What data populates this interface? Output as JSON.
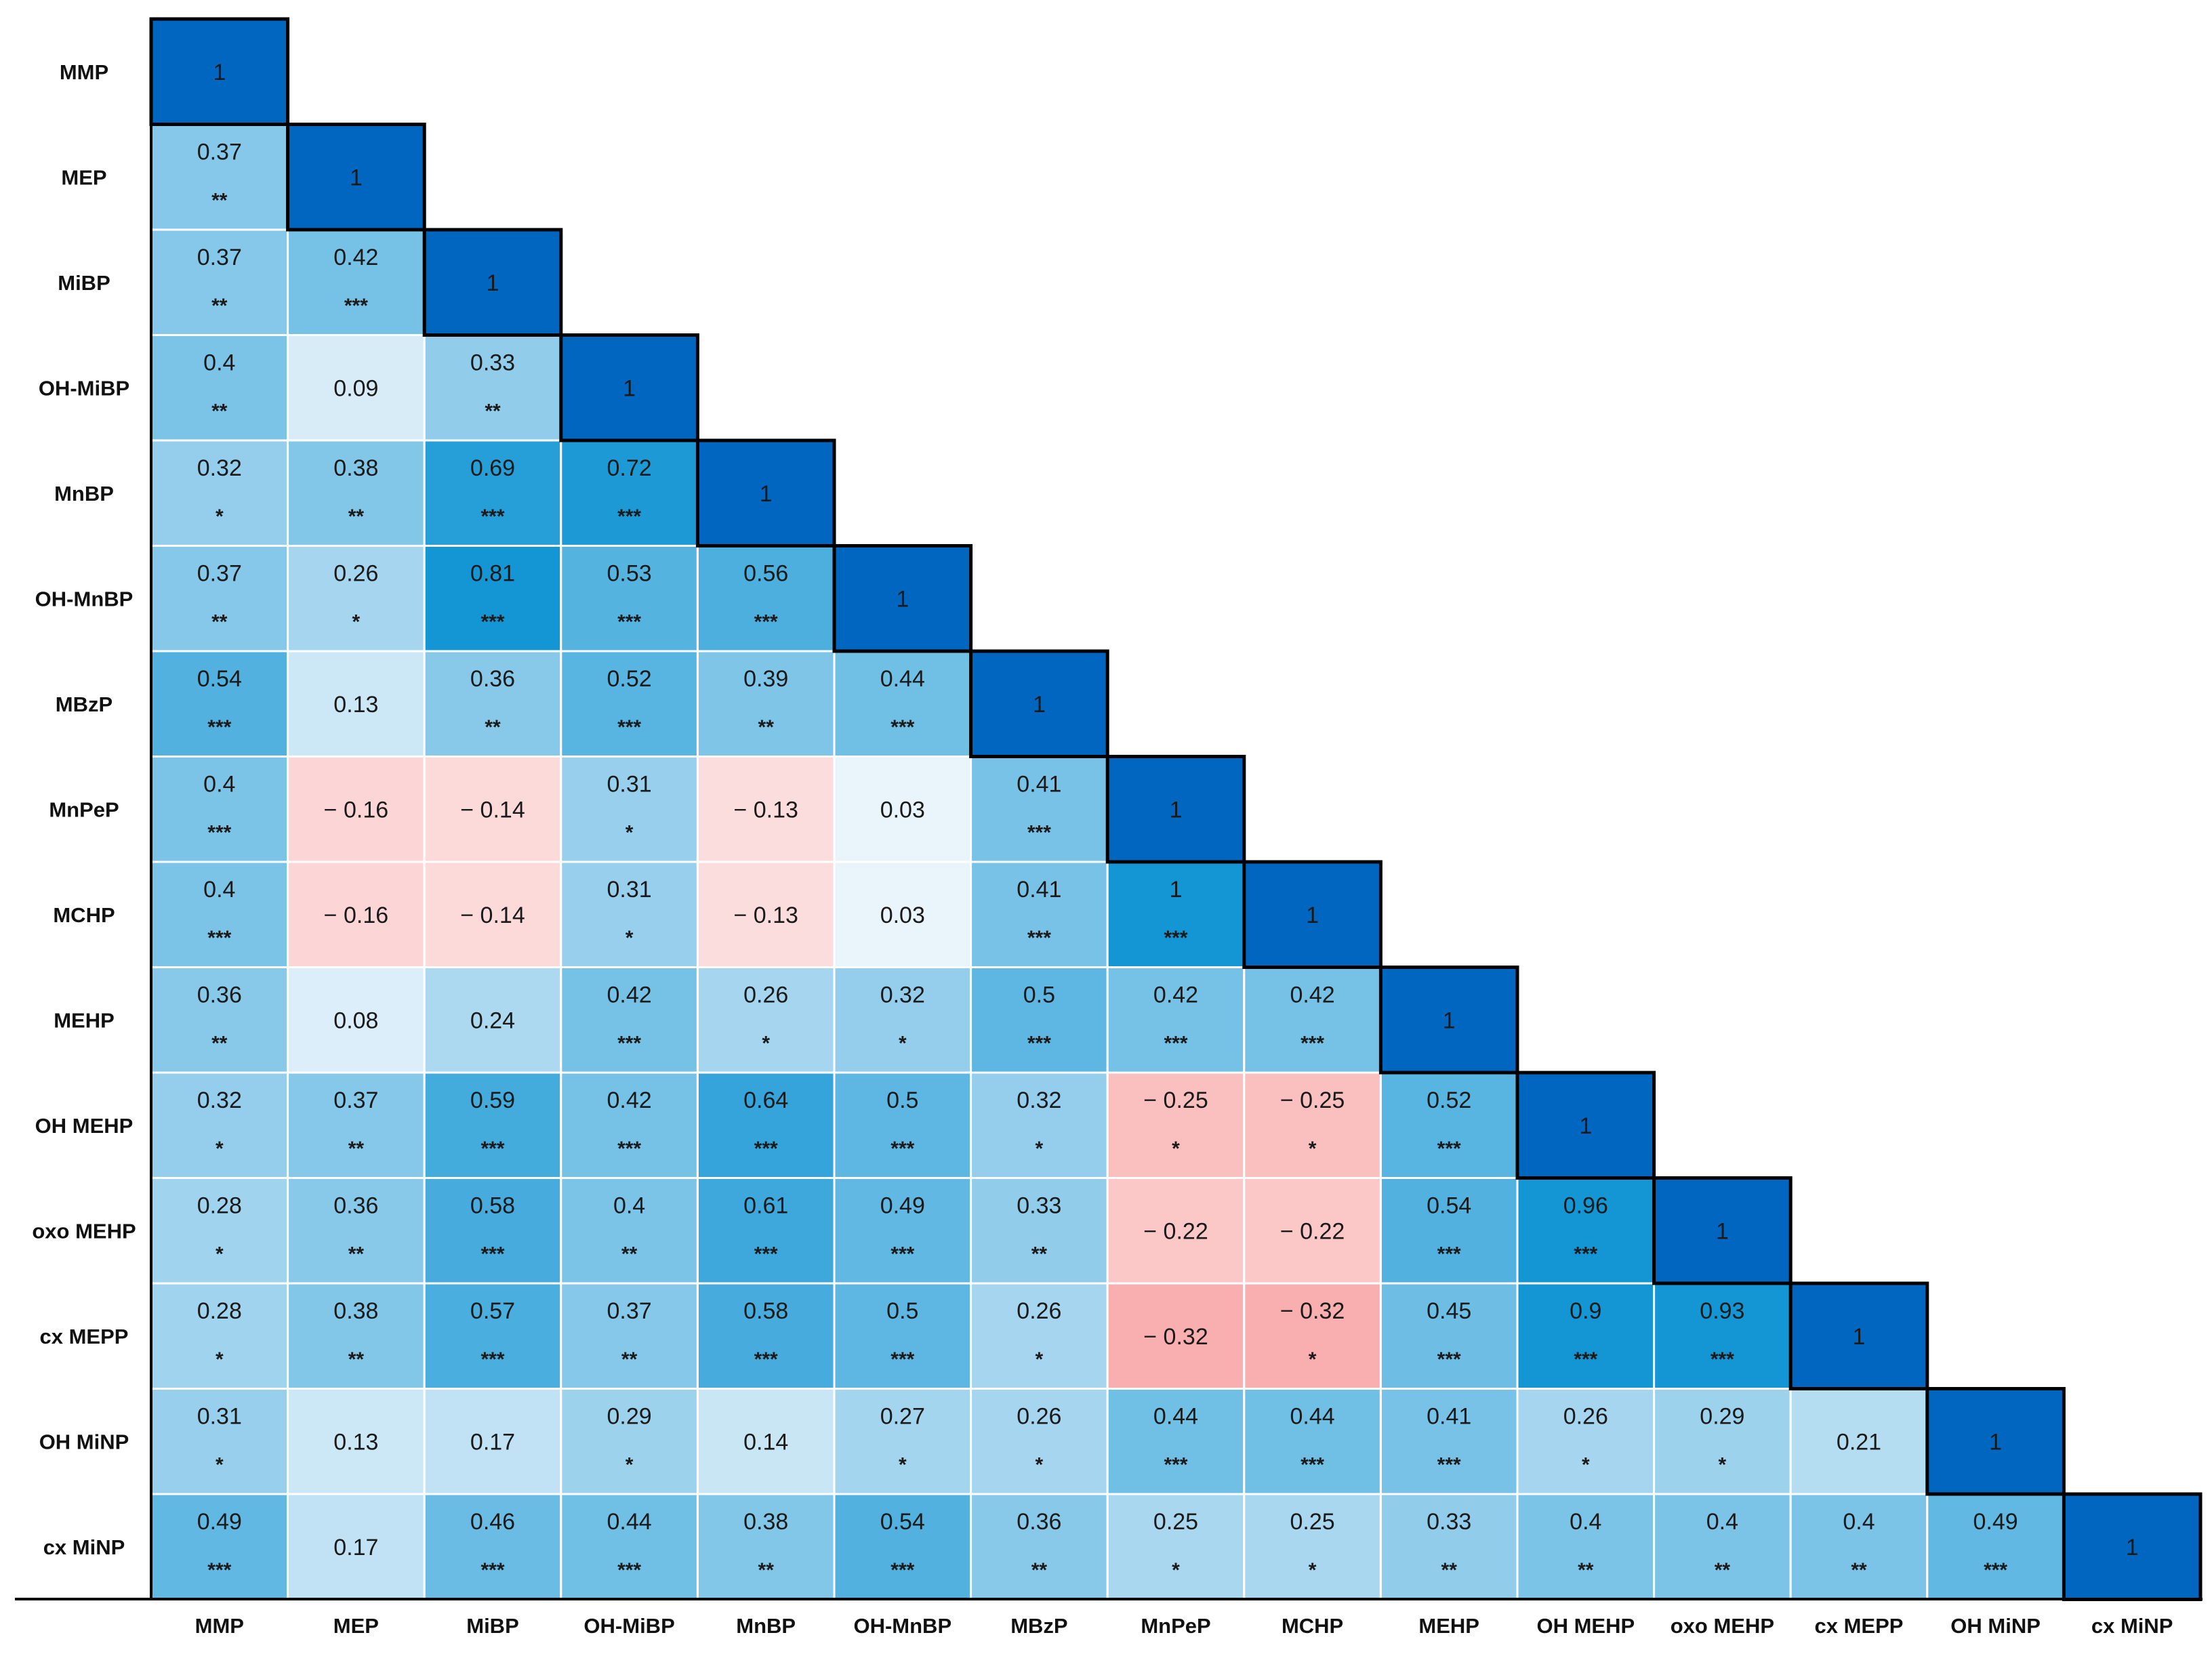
{
  "chart_data": {
    "type": "heatmap",
    "title": "",
    "variables": [
      "MMP",
      "MEP",
      "MiBP",
      "OH-MiBP",
      "MnBP",
      "OH-MnBP",
      "MBzP",
      "MnPeP",
      "MCHP",
      "MEHP",
      "OH MEHP",
      "oxo MEHP",
      "cx MEPP",
      "OH MiNP",
      "cx MiNP"
    ],
    "layout": "lower-triangular",
    "matrix": [
      [
        {
          "v": "1",
          "s": ""
        }
      ],
      [
        {
          "v": "0.37",
          "s": "**"
        },
        {
          "v": "1",
          "s": ""
        }
      ],
      [
        {
          "v": "0.37",
          "s": "**"
        },
        {
          "v": "0.42",
          "s": "***"
        },
        {
          "v": "1",
          "s": ""
        }
      ],
      [
        {
          "v": "0.4",
          "s": "**"
        },
        {
          "v": "0.09",
          "s": ""
        },
        {
          "v": "0.33",
          "s": "**"
        },
        {
          "v": "1",
          "s": ""
        }
      ],
      [
        {
          "v": "0.32",
          "s": "*"
        },
        {
          "v": "0.38",
          "s": "**"
        },
        {
          "v": "0.69",
          "s": "***"
        },
        {
          "v": "0.72",
          "s": "***"
        },
        {
          "v": "1",
          "s": ""
        }
      ],
      [
        {
          "v": "0.37",
          "s": "**"
        },
        {
          "v": "0.26",
          "s": "*"
        },
        {
          "v": "0.81",
          "s": "***"
        },
        {
          "v": "0.53",
          "s": "***"
        },
        {
          "v": "0.56",
          "s": "***"
        },
        {
          "v": "1",
          "s": ""
        }
      ],
      [
        {
          "v": "0.54",
          "s": "***"
        },
        {
          "v": "0.13",
          "s": ""
        },
        {
          "v": "0.36",
          "s": "**"
        },
        {
          "v": "0.52",
          "s": "***"
        },
        {
          "v": "0.39",
          "s": "**"
        },
        {
          "v": "0.44",
          "s": "***"
        },
        {
          "v": "1",
          "s": ""
        }
      ],
      [
        {
          "v": "0.4",
          "s": "***"
        },
        {
          "v": "− 0.16",
          "s": ""
        },
        {
          "v": "− 0.14",
          "s": ""
        },
        {
          "v": "0.31",
          "s": "*"
        },
        {
          "v": "− 0.13",
          "s": ""
        },
        {
          "v": "0.03",
          "s": ""
        },
        {
          "v": "0.41",
          "s": "***"
        },
        {
          "v": "1",
          "s": ""
        }
      ],
      [
        {
          "v": "0.4",
          "s": "***"
        },
        {
          "v": "− 0.16",
          "s": ""
        },
        {
          "v": "− 0.14",
          "s": ""
        },
        {
          "v": "0.31",
          "s": "*"
        },
        {
          "v": "− 0.13",
          "s": ""
        },
        {
          "v": "0.03",
          "s": ""
        },
        {
          "v": "0.41",
          "s": "***"
        },
        {
          "v": "1",
          "s": "***"
        },
        {
          "v": "1",
          "s": ""
        }
      ],
      [
        {
          "v": "0.36",
          "s": "**"
        },
        {
          "v": "0.08",
          "s": ""
        },
        {
          "v": "0.24",
          "s": ""
        },
        {
          "v": "0.42",
          "s": "***"
        },
        {
          "v": "0.26",
          "s": "*"
        },
        {
          "v": "0.32",
          "s": "*"
        },
        {
          "v": "0.5",
          "s": "***"
        },
        {
          "v": "0.42",
          "s": "***"
        },
        {
          "v": "0.42",
          "s": "***"
        },
        {
          "v": "1",
          "s": ""
        }
      ],
      [
        {
          "v": "0.32",
          "s": "*"
        },
        {
          "v": "0.37",
          "s": "**"
        },
        {
          "v": "0.59",
          "s": "***"
        },
        {
          "v": "0.42",
          "s": "***"
        },
        {
          "v": "0.64",
          "s": "***"
        },
        {
          "v": "0.5",
          "s": "***"
        },
        {
          "v": "0.32",
          "s": "*"
        },
        {
          "v": "− 0.25",
          "s": "*"
        },
        {
          "v": "− 0.25",
          "s": "*"
        },
        {
          "v": "0.52",
          "s": "***"
        },
        {
          "v": "1",
          "s": ""
        }
      ],
      [
        {
          "v": "0.28",
          "s": "*"
        },
        {
          "v": "0.36",
          "s": "**"
        },
        {
          "v": "0.58",
          "s": "***"
        },
        {
          "v": "0.4",
          "s": "**"
        },
        {
          "v": "0.61",
          "s": "***"
        },
        {
          "v": "0.49",
          "s": "***"
        },
        {
          "v": "0.33",
          "s": "**"
        },
        {
          "v": "− 0.22",
          "s": ""
        },
        {
          "v": "− 0.22",
          "s": ""
        },
        {
          "v": "0.54",
          "s": "***"
        },
        {
          "v": "0.96",
          "s": "***"
        },
        {
          "v": "1",
          "s": ""
        }
      ],
      [
        {
          "v": "0.28",
          "s": "*"
        },
        {
          "v": "0.38",
          "s": "**"
        },
        {
          "v": "0.57",
          "s": "***"
        },
        {
          "v": "0.37",
          "s": "**"
        },
        {
          "v": "0.58",
          "s": "***"
        },
        {
          "v": "0.5",
          "s": "***"
        },
        {
          "v": "0.26",
          "s": "*"
        },
        {
          "v": "− 0.32",
          "s": ""
        },
        {
          "v": "− 0.32",
          "s": "*"
        },
        {
          "v": "0.45",
          "s": "***"
        },
        {
          "v": "0.9",
          "s": "***"
        },
        {
          "v": "0.93",
          "s": "***"
        },
        {
          "v": "1",
          "s": ""
        }
      ],
      [
        {
          "v": "0.31",
          "s": "*"
        },
        {
          "v": "0.13",
          "s": ""
        },
        {
          "v": "0.17",
          "s": ""
        },
        {
          "v": "0.29",
          "s": "*"
        },
        {
          "v": "0.14",
          "s": ""
        },
        {
          "v": "0.27",
          "s": "*"
        },
        {
          "v": "0.26",
          "s": "*"
        },
        {
          "v": "0.44",
          "s": "***"
        },
        {
          "v": "0.44",
          "s": "***"
        },
        {
          "v": "0.41",
          "s": "***"
        },
        {
          "v": "0.26",
          "s": "*"
        },
        {
          "v": "0.29",
          "s": "*"
        },
        {
          "v": "0.21",
          "s": ""
        },
        {
          "v": "1",
          "s": ""
        }
      ],
      [
        {
          "v": "0.49",
          "s": "***"
        },
        {
          "v": "0.17",
          "s": ""
        },
        {
          "v": "0.46",
          "s": "***"
        },
        {
          "v": "0.44",
          "s": "***"
        },
        {
          "v": "0.38",
          "s": "**"
        },
        {
          "v": "0.54",
          "s": "***"
        },
        {
          "v": "0.36",
          "s": "**"
        },
        {
          "v": "0.25",
          "s": "*"
        },
        {
          "v": "0.25",
          "s": "*"
        },
        {
          "v": "0.33",
          "s": "**"
        },
        {
          "v": "0.4",
          "s": "**"
        },
        {
          "v": "0.4",
          "s": "**"
        },
        {
          "v": "0.4",
          "s": "**"
        },
        {
          "v": "0.49",
          "s": "***"
        },
        {
          "v": "1",
          "s": ""
        }
      ]
    ],
    "colors": {
      "diagonal": "#0066c0",
      "positive_low": "#f3f8fd",
      "positive_high": "#1496d4",
      "negative_low": "#fde4e4",
      "negative_high": "#f8a8a8"
    }
  }
}
